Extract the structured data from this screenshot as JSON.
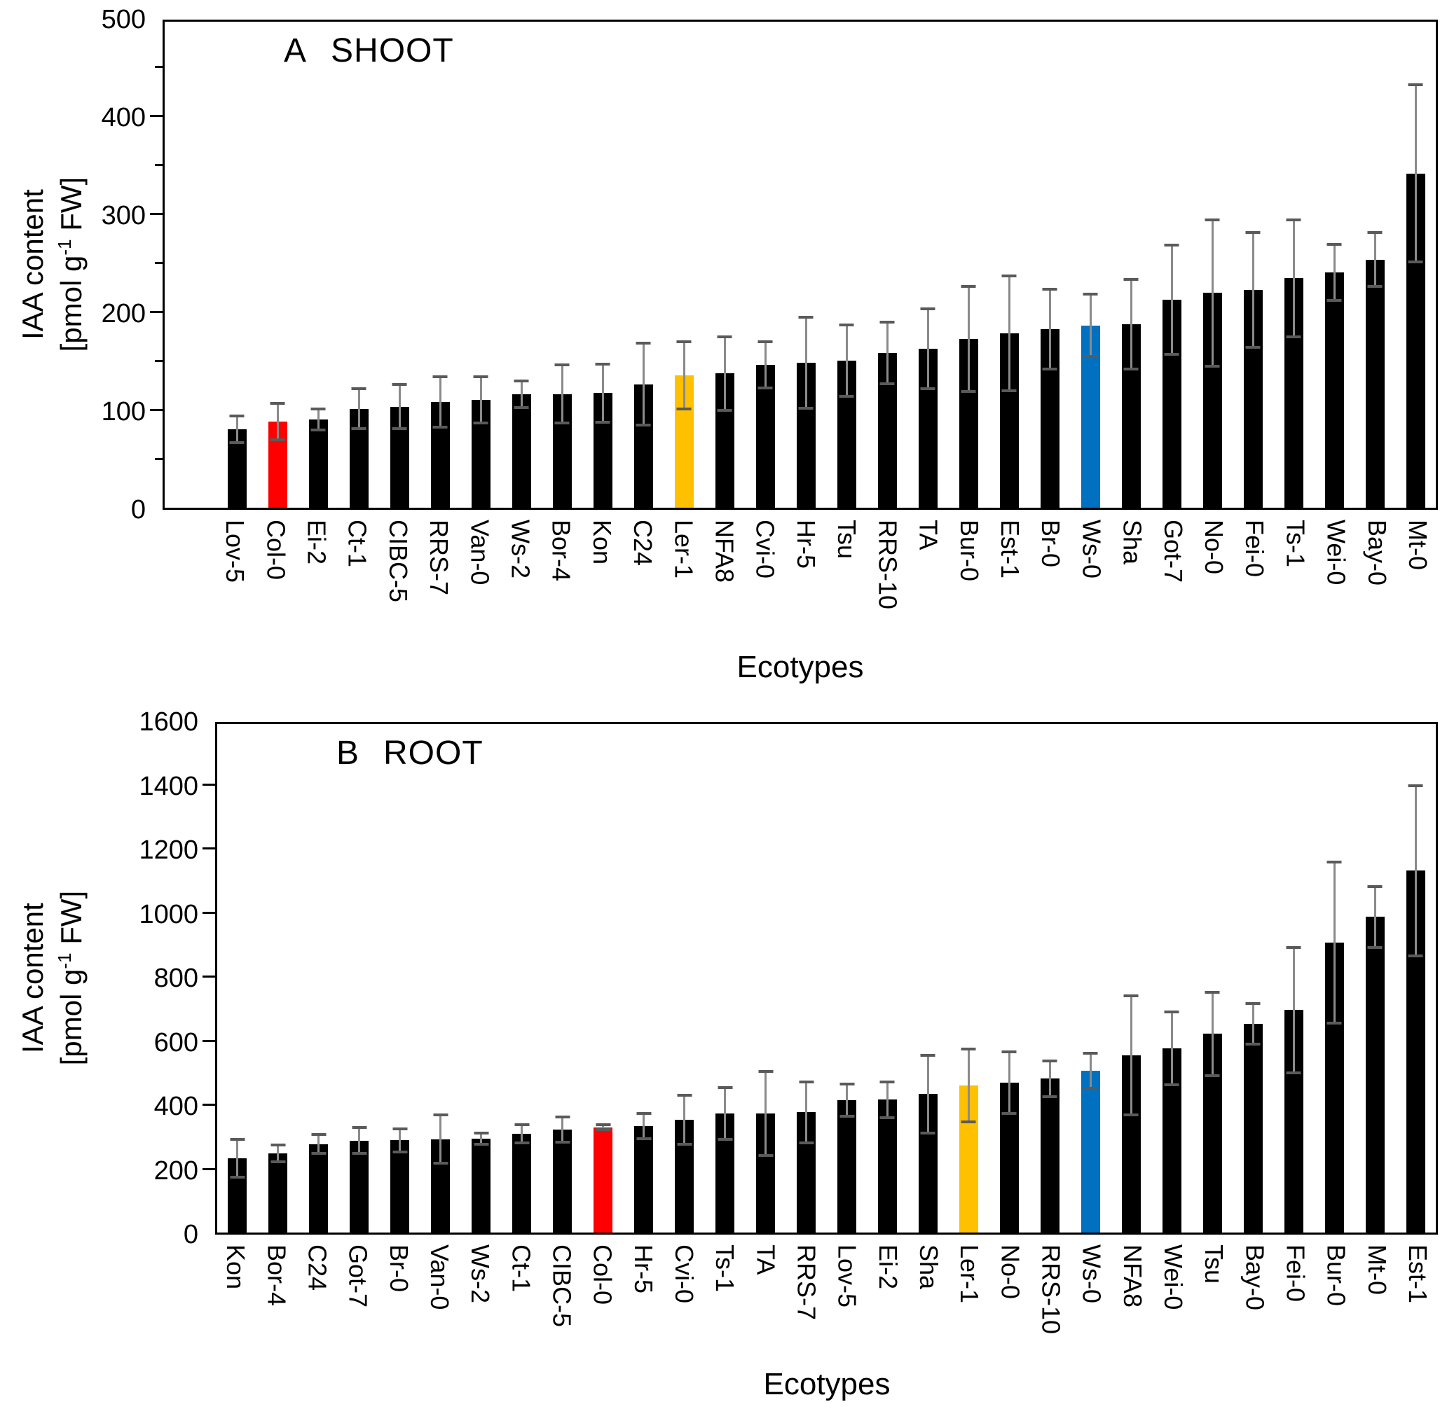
{
  "figure": {
    "ylabel_line1": "IAA content",
    "ylabel_unit_pre": "[pmol g",
    "ylabel_unit_sup": "-1",
    "ylabel_unit_post": " FW]",
    "bar_color_default": "#000000",
    "highlight_colors": {
      "Col-0": "#ff0000",
      "Ler-1": "#ffc000",
      "Ws-0": "#0070c0"
    },
    "error_line_color": "#8a8a8a",
    "error_cap_color": "#5a5a5a",
    "axis_color": "#000000"
  },
  "chart_data": [
    {
      "type": "bar",
      "panel_label": "A",
      "title": "SHOOT",
      "xlabel": "Ecotypes",
      "ylabel": "IAA content [pmol g⁻¹ FW]",
      "ylim": [
        0,
        500
      ],
      "ytick_step": 100,
      "yminor_step": 50,
      "grid": false,
      "legend": false,
      "categories": [
        "Lov-5",
        "Col-0",
        "Ei-2",
        "Ct-1",
        "CIBC-5",
        "RRS-7",
        "Van-0",
        "Ws-2",
        "Bor-4",
        "Kon",
        "C24",
        "Ler-1",
        "NFA8",
        "Cvi-0",
        "Hr-5",
        "Tsu",
        "RRS-10",
        "TA",
        "Bur-0",
        "Est-1",
        "Br-0",
        "Ws-0",
        "Sha",
        "Got-7",
        "No-0",
        "Fei-0",
        "Ts-1",
        "Wei-0",
        "Bay-0",
        "Mt-0"
      ],
      "values": [
        80,
        88,
        90,
        101,
        103,
        108,
        110,
        116,
        116,
        117,
        126,
        135,
        137,
        146,
        148,
        150,
        158,
        162,
        172,
        178,
        182,
        186,
        187,
        212,
        219,
        222,
        234,
        240,
        253,
        341
      ],
      "errors": [
        15,
        20,
        12,
        22,
        24,
        27,
        25,
        15,
        31,
        31,
        43,
        36,
        39,
        25,
        48,
        38,
        33,
        42,
        55,
        60,
        42,
        33,
        47,
        57,
        76,
        60,
        61,
        30,
        29,
        92
      ]
    },
    {
      "type": "bar",
      "panel_label": "B",
      "title": "ROOT",
      "xlabel": "Ecotypes",
      "ylabel": "IAA content [pmol g⁻¹ FW]",
      "ylim": [
        0,
        1600
      ],
      "ytick_step": 200,
      "yminor_step": 200,
      "grid": false,
      "legend": false,
      "categories": [
        "Kon",
        "Bor-4",
        "C24",
        "Got-7",
        "Br-0",
        "Van-0",
        "Ws-2",
        "Ct-1",
        "CIBC-5",
        "Col-0",
        "Hr-5",
        "Cvi-0",
        "Ts-1",
        "TA",
        "RRS-7",
        "Lov-5",
        "Ei-2",
        "Sha",
        "Ler-1",
        "No-0",
        "RRS-10",
        "Ws-0",
        "NFA8",
        "Wei-0",
        "Tsu",
        "Bay-0",
        "Fei-0",
        "Bur-0",
        "Mt-0",
        "Est-1"
      ],
      "values": [
        232,
        247,
        276,
        287,
        288,
        291,
        293,
        308,
        322,
        328,
        333,
        352,
        372,
        372,
        375,
        413,
        415,
        432,
        458,
        468,
        480,
        505,
        553,
        575,
        620,
        652,
        695,
        905,
        985,
        1130
      ],
      "errors": [
        64,
        30,
        34,
        45,
        40,
        80,
        22,
        32,
        44,
        12,
        44,
        80,
        85,
        135,
        100,
        55,
        60,
        125,
        118,
        100,
        60,
        58,
        190,
        118,
        135,
        68,
        200,
        255,
        100,
        270
      ]
    }
  ]
}
